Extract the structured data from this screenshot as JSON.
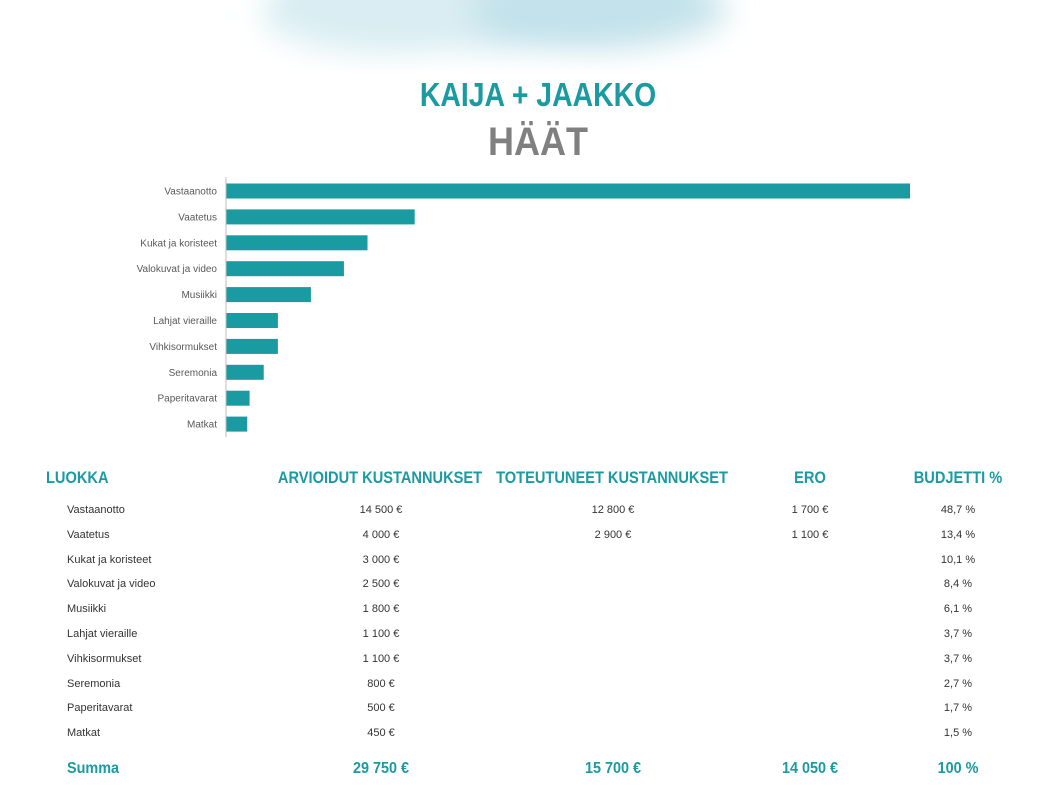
{
  "header": {
    "title": "KAIJA + JAAKKO",
    "subtitle": "HÄÄT"
  },
  "colors": {
    "accent": "#1a9aa1",
    "subtitle": "#808080",
    "bar": "#1a9aa1"
  },
  "chart_data": {
    "type": "bar",
    "orientation": "horizontal",
    "categories": [
      "Vastaanotto",
      "Vaatetus",
      "Kukat ja koristeet",
      "Valokuvat ja video",
      "Musiikki",
      "Lahjat vieraille",
      "Vihkisormukset",
      "Seremonia",
      "Paperitavarat",
      "Matkat"
    ],
    "values": [
      14500,
      4000,
      3000,
      2500,
      1800,
      1100,
      1100,
      800,
      500,
      450
    ],
    "xlim": [
      0,
      14500
    ],
    "grid": false,
    "legend": "none"
  },
  "table": {
    "headers": {
      "category": "LUOKKA",
      "estimated": "ARVIOIDUT KUSTANNUKSET",
      "actual": "TOTEUTUNEET KUSTANNUKSET",
      "difference": "ERO",
      "budget_pct": "BUDJETTI %"
    },
    "rows": [
      {
        "category": "Vastaanotto",
        "estimated": "14 500 €",
        "actual": "12 800 €",
        "difference": "1 700 €",
        "budget_pct": "48,7 %"
      },
      {
        "category": "Vaatetus",
        "estimated": "4 000 €",
        "actual": "2 900 €",
        "difference": "1 100 €",
        "budget_pct": "13,4 %"
      },
      {
        "category": "Kukat ja koristeet",
        "estimated": "3 000 €",
        "actual": "",
        "difference": "",
        "budget_pct": "10,1 %"
      },
      {
        "category": "Valokuvat ja video",
        "estimated": "2 500 €",
        "actual": "",
        "difference": "",
        "budget_pct": "8,4 %"
      },
      {
        "category": "Musiikki",
        "estimated": "1 800 €",
        "actual": "",
        "difference": "",
        "budget_pct": "6,1 %"
      },
      {
        "category": "Lahjat vieraille",
        "estimated": "1 100 €",
        "actual": "",
        "difference": "",
        "budget_pct": "3,7 %"
      },
      {
        "category": "Vihkisormukset",
        "estimated": "1 100 €",
        "actual": "",
        "difference": "",
        "budget_pct": "3,7 %"
      },
      {
        "category": "Seremonia",
        "estimated": "800 €",
        "actual": "",
        "difference": "",
        "budget_pct": "2,7 %"
      },
      {
        "category": "Paperitavarat",
        "estimated": "500 €",
        "actual": "",
        "difference": "",
        "budget_pct": "1,7 %"
      },
      {
        "category": "Matkat",
        "estimated": "450 €",
        "actual": "",
        "difference": "",
        "budget_pct": "1,5 %"
      }
    ],
    "totals": {
      "label": "Summa",
      "estimated": "29 750 €",
      "actual": "15 700 €",
      "difference": "14 050 €",
      "budget_pct": "100 %"
    }
  }
}
